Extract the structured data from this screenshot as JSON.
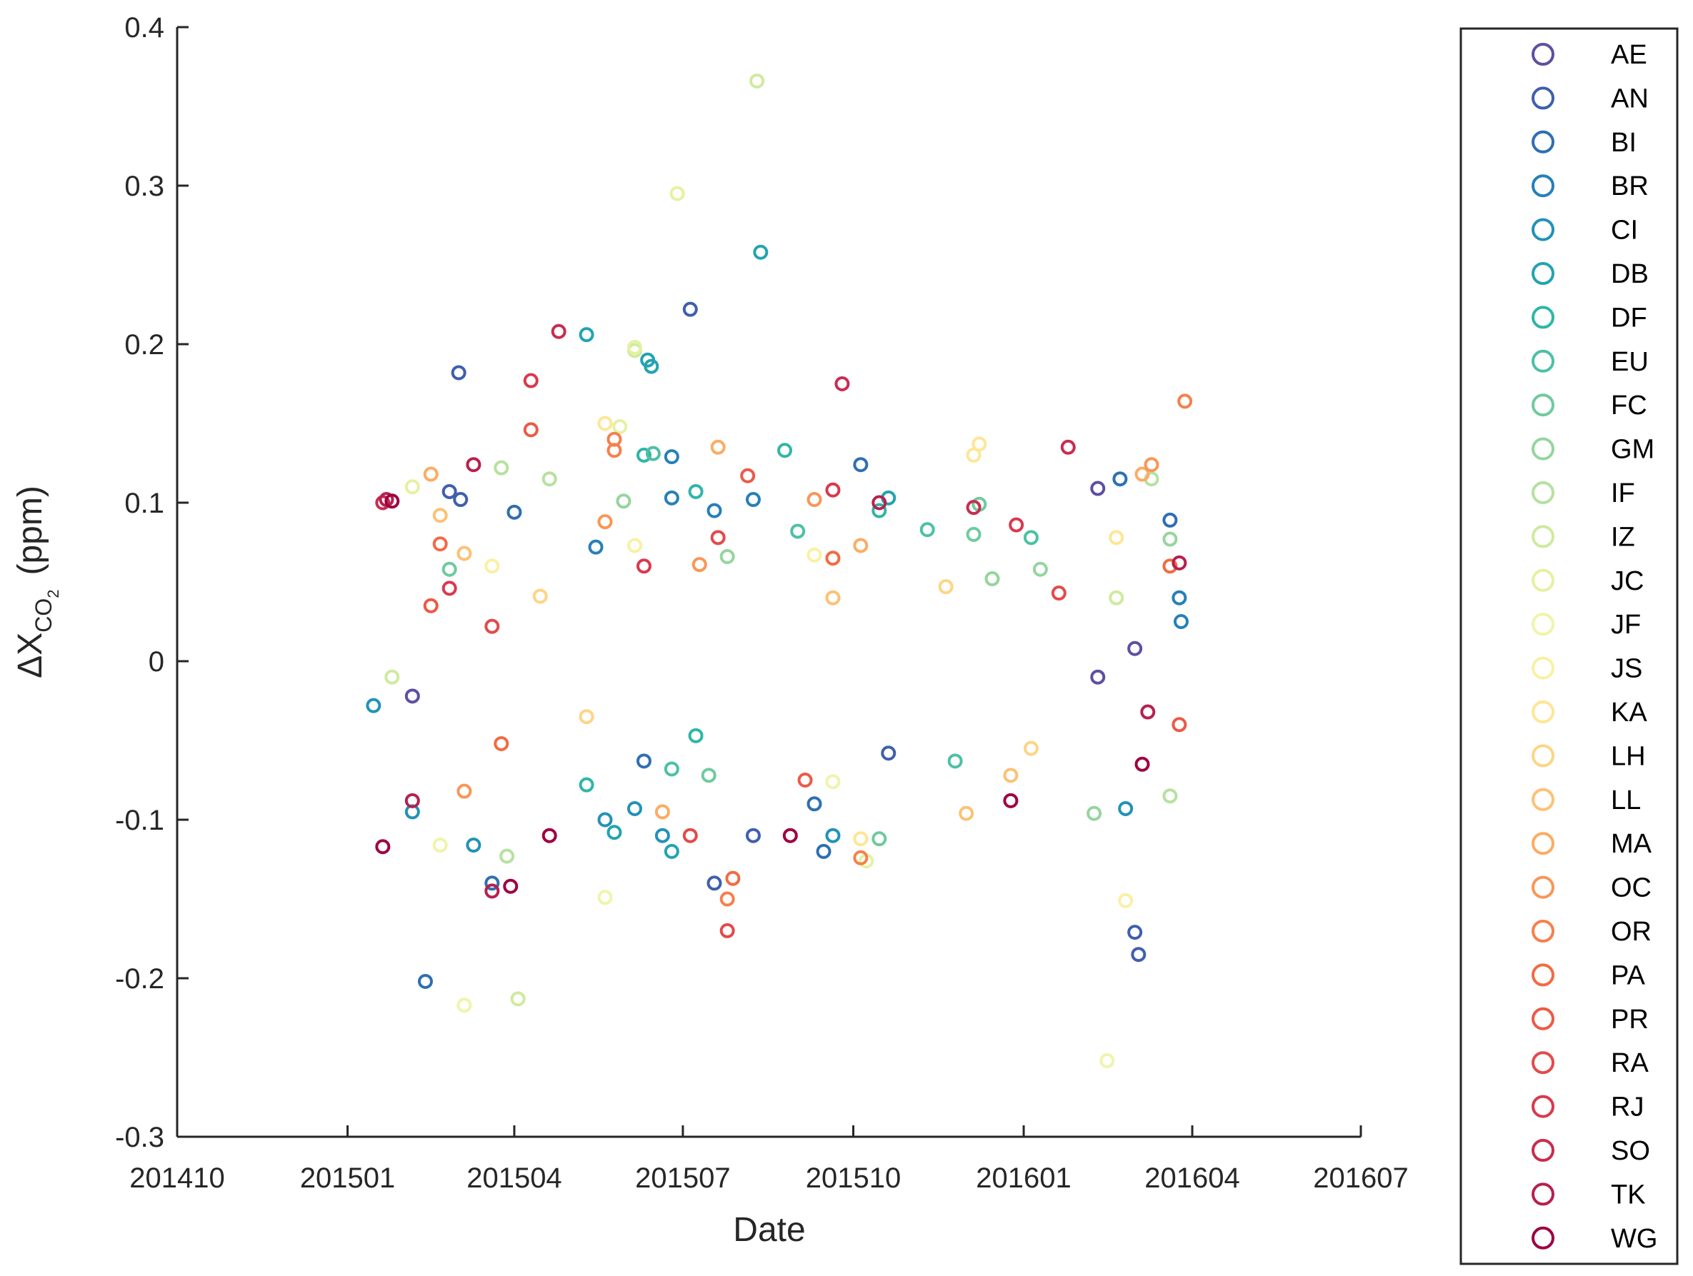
{
  "chart_data": {
    "type": "scatter",
    "xlabel": "Date",
    "ylabel": {
      "prefix": "ΔX",
      "sub": "CO",
      "subsub": "2",
      "unit": "(ppm)"
    },
    "x_ticks": [
      "201410",
      "201501",
      "201504",
      "201507",
      "201510",
      "201601",
      "201604",
      "201607"
    ],
    "y_ticks": [
      "-0.3",
      "-0.2",
      "-0.1",
      "0",
      "0.1",
      "0.2",
      "0.3",
      "0.4"
    ],
    "xlim": [
      "201410",
      "201607"
    ],
    "ylim": [
      -0.3,
      0.4
    ],
    "grid": false,
    "legend_position": "right-outside",
    "marker": "open-circle",
    "series": [
      {
        "name": "AE",
        "color": "#5e4fa2",
        "points": [
          [
            "2015-02-05",
            -0.022
          ],
          [
            "2016-02-10",
            0.109
          ],
          [
            "2016-02-10",
            -0.01
          ],
          [
            "2016-03-01",
            0.008
          ]
        ]
      },
      {
        "name": "AN",
        "color": "#3f5fae",
        "points": [
          [
            "2015-03-02",
            0.182
          ],
          [
            "2015-03-03",
            0.102
          ],
          [
            "2015-07-05",
            0.222
          ],
          [
            "2015-08-08",
            -0.11
          ],
          [
            "2015-07-18",
            -0.14
          ],
          [
            "2016-03-03",
            -0.185
          ],
          [
            "2016-03-01",
            -0.171
          ],
          [
            "2015-10-20",
            -0.058
          ],
          [
            "2015-02-25",
            0.107
          ]
        ]
      },
      {
        "name": "BI",
        "color": "#2e6fb3",
        "points": [
          [
            "2015-02-12",
            -0.202
          ],
          [
            "2015-04-01",
            0.094
          ],
          [
            "2015-09-10",
            -0.09
          ],
          [
            "2015-09-15",
            -0.12
          ],
          [
            "2015-10-05",
            0.124
          ],
          [
            "2016-03-20",
            0.089
          ],
          [
            "2016-02-22",
            0.115
          ],
          [
            "2015-06-10",
            -0.063
          ],
          [
            "2015-03-20",
            -0.14
          ]
        ]
      },
      {
        "name": "BR",
        "color": "#2680ba",
        "points": [
          [
            "2015-06-25",
            0.129
          ],
          [
            "2015-06-25",
            0.103
          ],
          [
            "2015-07-18",
            0.095
          ],
          [
            "2015-08-08",
            0.102
          ],
          [
            "2015-05-15",
            0.072
          ],
          [
            "2016-03-25",
            0.04
          ],
          [
            "2016-03-26",
            0.025
          ]
        ]
      },
      {
        "name": "CI",
        "color": "#2392b7",
        "points": [
          [
            "2015-01-15",
            -0.028
          ],
          [
            "2015-02-05",
            -0.095
          ],
          [
            "2015-03-10",
            -0.116
          ],
          [
            "2015-05-20",
            -0.1
          ],
          [
            "2015-06-05",
            -0.093
          ],
          [
            "2015-06-20",
            -0.11
          ],
          [
            "2015-09-20",
            -0.11
          ],
          [
            "2016-02-25",
            -0.093
          ]
        ]
      },
      {
        "name": "DB",
        "color": "#22a4b0",
        "points": [
          [
            "2015-05-10",
            0.206
          ],
          [
            "2015-06-12",
            0.19
          ],
          [
            "2015-06-14",
            0.186
          ],
          [
            "2015-08-12",
            0.258
          ],
          [
            "2015-06-25",
            -0.12
          ],
          [
            "2015-05-25",
            -0.108
          ],
          [
            "2015-10-20",
            0.103
          ]
        ]
      },
      {
        "name": "DF",
        "color": "#2fb6a6",
        "points": [
          [
            "2015-06-10",
            0.13
          ],
          [
            "2015-07-08",
            0.107
          ],
          [
            "2015-08-25",
            0.133
          ],
          [
            "2015-10-15",
            0.095
          ],
          [
            "2015-07-08",
            -0.047
          ],
          [
            "2015-05-10",
            -0.078
          ]
        ]
      },
      {
        "name": "EU",
        "color": "#4dc0a5",
        "points": [
          [
            "2015-06-15",
            0.131
          ],
          [
            "2015-09-01",
            0.082
          ],
          [
            "2015-11-10",
            0.083
          ],
          [
            "2016-01-05",
            0.078
          ],
          [
            "2015-11-25",
            -0.063
          ],
          [
            "2015-06-25",
            -0.068
          ]
        ]
      },
      {
        "name": "FC",
        "color": "#70ca9f",
        "points": [
          [
            "2015-02-25",
            0.058
          ],
          [
            "2015-12-08",
            0.099
          ],
          [
            "2015-12-05",
            0.08
          ],
          [
            "2015-10-15",
            -0.112
          ],
          [
            "2015-07-15",
            -0.072
          ]
        ]
      },
      {
        "name": "GM",
        "color": "#95d59e",
        "points": [
          [
            "2015-05-30",
            0.101
          ],
          [
            "2015-07-25",
            0.066
          ],
          [
            "2015-12-15",
            0.052
          ],
          [
            "2016-02-08",
            -0.096
          ],
          [
            "2016-01-10",
            0.058
          ],
          [
            "2016-03-20",
            0.077
          ]
        ]
      },
      {
        "name": "IF",
        "color": "#b6e1a0",
        "points": [
          [
            "2015-03-25",
            0.122
          ],
          [
            "2015-04-20",
            0.115
          ],
          [
            "2015-03-28",
            -0.123
          ],
          [
            "2016-03-10",
            0.115
          ],
          [
            "2016-03-20",
            -0.085
          ]
        ]
      },
      {
        "name": "IZ",
        "color": "#cfea9e",
        "points": [
          [
            "2015-08-10",
            0.366
          ],
          [
            "2015-04-03",
            -0.213
          ],
          [
            "2015-06-05",
            0.196
          ],
          [
            "2015-01-25",
            -0.01
          ],
          [
            "2016-02-20",
            0.04
          ]
        ]
      },
      {
        "name": "JC",
        "color": "#e3f2a1",
        "points": [
          [
            "2015-06-28",
            0.295
          ],
          [
            "2015-06-05",
            0.198
          ],
          [
            "2015-05-28",
            0.148
          ],
          [
            "2015-02-05",
            0.11
          ],
          [
            "2015-10-08",
            -0.126
          ]
        ]
      },
      {
        "name": "JF",
        "color": "#f0f4aa",
        "points": [
          [
            "2015-02-20",
            -0.116
          ],
          [
            "2015-03-05",
            -0.217
          ],
          [
            "2016-02-15",
            -0.252
          ],
          [
            "2015-05-20",
            -0.149
          ],
          [
            "2015-09-20",
            -0.076
          ]
        ]
      },
      {
        "name": "JS",
        "color": "#f8f1a4",
        "points": [
          [
            "2015-03-20",
            0.06
          ],
          [
            "2015-06-05",
            0.073
          ],
          [
            "2015-09-10",
            0.067
          ],
          [
            "2016-02-25",
            -0.151
          ]
        ]
      },
      {
        "name": "KA",
        "color": "#fde696",
        "points": [
          [
            "2015-05-20",
            0.15
          ],
          [
            "2015-12-08",
            0.137
          ],
          [
            "2015-12-05",
            0.13
          ],
          [
            "2016-02-20",
            0.078
          ],
          [
            "2015-10-05",
            -0.112
          ]
        ]
      },
      {
        "name": "LH",
        "color": "#fdd585",
        "points": [
          [
            "2015-05-10",
            -0.035
          ],
          [
            "2015-11-20",
            0.047
          ],
          [
            "2016-01-05",
            -0.055
          ],
          [
            "2015-04-15",
            0.041
          ]
        ]
      },
      {
        "name": "LL",
        "color": "#fdc174",
        "points": [
          [
            "2015-03-05",
            0.068
          ],
          [
            "2015-02-20",
            0.092
          ],
          [
            "2015-09-20",
            0.04
          ],
          [
            "2015-12-01",
            -0.096
          ],
          [
            "2015-12-25",
            -0.072
          ]
        ]
      },
      {
        "name": "MA",
        "color": "#fcac64",
        "points": [
          [
            "2015-07-20",
            0.135
          ],
          [
            "2015-02-15",
            0.118
          ],
          [
            "2015-10-05",
            0.073
          ],
          [
            "2015-06-20",
            -0.095
          ],
          [
            "2016-03-05",
            0.118
          ]
        ]
      },
      {
        "name": "OC",
        "color": "#f99657",
        "points": [
          [
            "2015-07-10",
            0.061
          ],
          [
            "2016-03-10",
            0.124
          ],
          [
            "2015-09-10",
            0.102
          ],
          [
            "2015-05-20",
            0.088
          ],
          [
            "2015-03-05",
            -0.082
          ]
        ]
      },
      {
        "name": "OR",
        "color": "#f6804c",
        "points": [
          [
            "2015-05-25",
            0.14
          ],
          [
            "2015-05-25",
            0.133
          ],
          [
            "2016-03-28",
            0.164
          ],
          [
            "2015-07-25",
            -0.15
          ],
          [
            "2015-10-05",
            -0.124
          ]
        ]
      },
      {
        "name": "PA",
        "color": "#f26b43",
        "points": [
          [
            "2015-07-28",
            -0.137
          ],
          [
            "2015-09-20",
            0.065
          ],
          [
            "2016-03-20",
            0.06
          ],
          [
            "2015-02-20",
            0.074
          ],
          [
            "2015-03-25",
            -0.052
          ]
        ]
      },
      {
        "name": "PR",
        "color": "#ec5a46",
        "points": [
          [
            "2015-04-10",
            0.146
          ],
          [
            "2015-08-05",
            0.117
          ],
          [
            "2015-09-05",
            -0.075
          ],
          [
            "2015-02-15",
            0.035
          ],
          [
            "2016-03-25",
            -0.04
          ]
        ]
      },
      {
        "name": "RA",
        "color": "#e44a4a",
        "points": [
          [
            "2015-07-25",
            -0.17
          ],
          [
            "2015-07-05",
            -0.11
          ],
          [
            "2015-07-20",
            0.078
          ],
          [
            "2016-01-20",
            0.043
          ],
          [
            "2015-03-20",
            0.022
          ]
        ]
      },
      {
        "name": "RJ",
        "color": "#d9394e",
        "points": [
          [
            "2015-04-10",
            0.177
          ],
          [
            "2015-09-20",
            0.108
          ],
          [
            "2015-12-28",
            0.086
          ],
          [
            "2015-02-25",
            0.046
          ],
          [
            "2015-06-10",
            0.06
          ]
        ]
      },
      {
        "name": "SO",
        "color": "#c92c4f",
        "points": [
          [
            "2015-04-25",
            0.208
          ],
          [
            "2015-09-25",
            0.175
          ],
          [
            "2016-01-25",
            0.135
          ],
          [
            "2015-12-05",
            0.097
          ],
          [
            "2015-01-20",
            0.1
          ]
        ]
      },
      {
        "name": "TK",
        "color": "#b7204e",
        "points": [
          [
            "2015-01-22",
            0.102
          ],
          [
            "2015-03-10",
            0.124
          ],
          [
            "2015-10-15",
            0.1
          ],
          [
            "2015-02-05",
            -0.088
          ],
          [
            "2015-03-20",
            -0.145
          ],
          [
            "2016-03-08",
            -0.032
          ],
          [
            "2016-03-25",
            0.062
          ]
        ]
      },
      {
        "name": "WG",
        "color": "#9e0142",
        "points": [
          [
            "2015-01-20",
            -0.117
          ],
          [
            "2015-04-20",
            -0.11
          ],
          [
            "2015-08-28",
            -0.11
          ],
          [
            "2015-12-25",
            -0.088
          ],
          [
            "2016-03-05",
            -0.065
          ],
          [
            "2015-03-30",
            -0.142
          ],
          [
            "2015-01-25",
            0.101
          ]
        ]
      }
    ]
  }
}
